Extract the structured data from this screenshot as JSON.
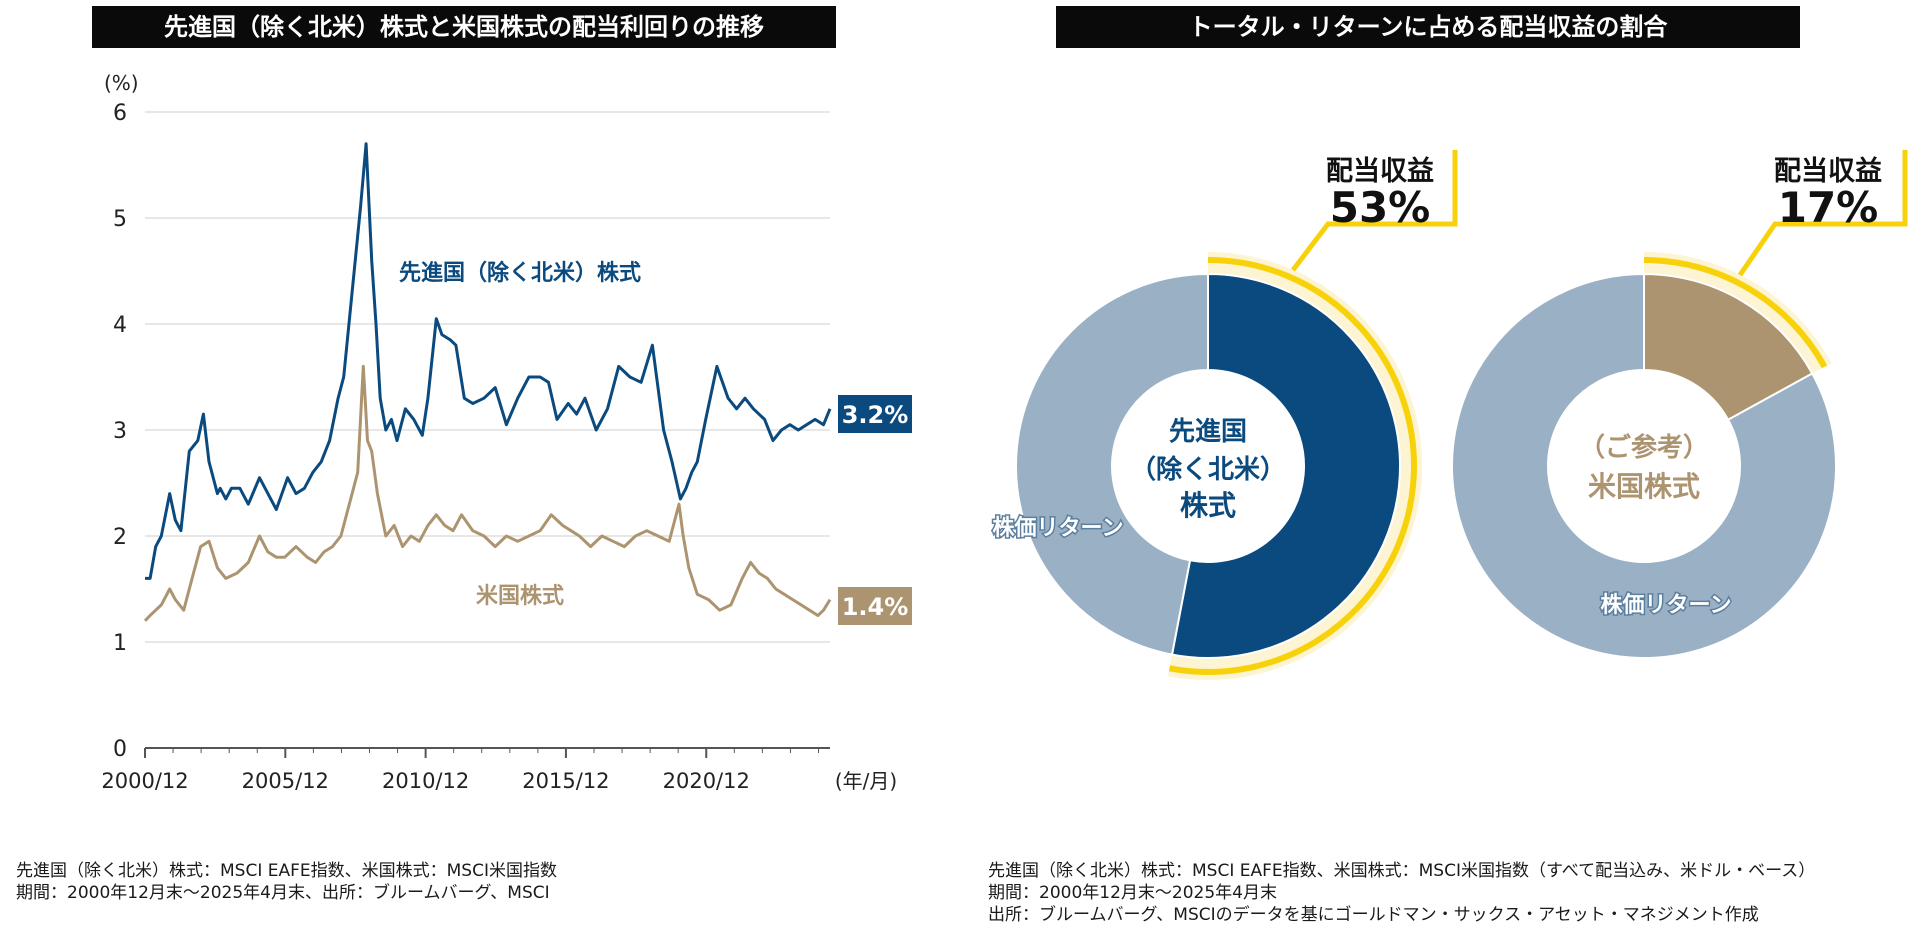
{
  "left_chart_title": "先進国（除く北米）株式と米国株式の配当利回りの推移",
  "right_chart_title": "トータル・リターンに占める配当収益の割合",
  "colors": {
    "navy": "#0b4a7e",
    "tan": "#ad9470",
    "slate": "#9ab0c4",
    "yellow": "#f7d20a",
    "grid": "#cfcfcf"
  },
  "chart_data": [
    {
      "type": "line",
      "title": "先進国（除く北米）株式と米国株式の配当利回りの推移",
      "yunit": "(%)",
      "xunit": "(年/月)",
      "ylim": [
        0,
        6
      ],
      "yticks": [
        0,
        1,
        2,
        3,
        4,
        5,
        6
      ],
      "xlim": [
        2000.92,
        2025.33
      ],
      "xticks": [
        {
          "value": 2000.92,
          "label": "2000/12"
        },
        {
          "value": 2005.92,
          "label": "2005/12"
        },
        {
          "value": 2010.92,
          "label": "2010/12"
        },
        {
          "value": 2015.92,
          "label": "2015/12"
        },
        {
          "value": 2020.92,
          "label": "2020/12"
        }
      ],
      "grid": true,
      "series": [
        {
          "name": "先進国（除く北米）株式",
          "end_label": "3.2%",
          "color": "#0b4a7e",
          "x": [
            2000.92,
            2001.1,
            2001.3,
            2001.5,
            2001.8,
            2002.0,
            2002.2,
            2002.5,
            2002.8,
            2003.0,
            2003.2,
            2003.5,
            2003.6,
            2003.8,
            2004.0,
            2004.3,
            2004.6,
            2005.0,
            2005.3,
            2005.6,
            2006.0,
            2006.3,
            2006.6,
            2006.9,
            2007.2,
            2007.5,
            2007.8,
            2008.0,
            2008.3,
            2008.6,
            2008.8,
            2009.0,
            2009.15,
            2009.3,
            2009.5,
            2009.7,
            2009.9,
            2010.2,
            2010.5,
            2010.8,
            2011.0,
            2011.3,
            2011.5,
            2011.8,
            2012.0,
            2012.3,
            2012.6,
            2013.0,
            2013.4,
            2013.8,
            2014.2,
            2014.6,
            2015.0,
            2015.3,
            2015.6,
            2016.0,
            2016.3,
            2016.6,
            2017.0,
            2017.4,
            2017.8,
            2018.2,
            2018.6,
            2019.0,
            2019.4,
            2019.7,
            2020.0,
            2020.2,
            2020.4,
            2020.6,
            2020.9,
            2021.3,
            2021.7,
            2022.0,
            2022.3,
            2022.6,
            2023.0,
            2023.3,
            2023.6,
            2023.9,
            2024.2,
            2024.5,
            2024.8,
            2025.1,
            2025.33
          ],
          "values": [
            1.6,
            1.6,
            1.9,
            2.0,
            2.4,
            2.15,
            2.05,
            2.8,
            2.9,
            3.15,
            2.7,
            2.4,
            2.45,
            2.35,
            2.45,
            2.45,
            2.3,
            2.55,
            2.4,
            2.25,
            2.55,
            2.4,
            2.45,
            2.6,
            2.7,
            2.9,
            3.3,
            3.5,
            4.3,
            5.1,
            5.7,
            4.6,
            4.0,
            3.3,
            3.0,
            3.1,
            2.9,
            3.2,
            3.1,
            2.95,
            3.3,
            4.05,
            3.9,
            3.85,
            3.8,
            3.3,
            3.25,
            3.3,
            3.4,
            3.05,
            3.3,
            3.5,
            3.5,
            3.45,
            3.1,
            3.25,
            3.15,
            3.3,
            3.0,
            3.2,
            3.6,
            3.5,
            3.45,
            3.8,
            3.0,
            2.7,
            2.35,
            2.45,
            2.6,
            2.7,
            3.1,
            3.6,
            3.3,
            3.2,
            3.3,
            3.2,
            3.1,
            2.9,
            3.0,
            3.05,
            3.0,
            3.05,
            3.1,
            3.05,
            3.2
          ]
        },
        {
          "name": "米国株式",
          "end_label": "1.4%",
          "color": "#ad9470",
          "x": [
            2000.92,
            2001.1,
            2001.3,
            2001.5,
            2001.8,
            2002.0,
            2002.3,
            2002.6,
            2002.9,
            2003.2,
            2003.5,
            2003.8,
            2004.2,
            2004.6,
            2005.0,
            2005.3,
            2005.6,
            2005.9,
            2006.3,
            2006.7,
            2007.0,
            2007.3,
            2007.6,
            2007.9,
            2008.2,
            2008.5,
            2008.7,
            2008.85,
            2009.0,
            2009.2,
            2009.5,
            2009.8,
            2010.1,
            2010.4,
            2010.7,
            2011.0,
            2011.3,
            2011.6,
            2011.9,
            2012.2,
            2012.6,
            2013.0,
            2013.4,
            2013.8,
            2014.2,
            2014.6,
            2015.0,
            2015.4,
            2015.8,
            2016.1,
            2016.4,
            2016.8,
            2017.2,
            2017.6,
            2018.0,
            2018.4,
            2018.8,
            2019.2,
            2019.6,
            2019.95,
            2020.1,
            2020.3,
            2020.6,
            2021.0,
            2021.4,
            2021.8,
            2022.2,
            2022.5,
            2022.8,
            2023.1,
            2023.4,
            2023.7,
            2024.0,
            2024.3,
            2024.6,
            2024.9,
            2025.1,
            2025.33
          ],
          "values": [
            1.2,
            1.25,
            1.3,
            1.35,
            1.5,
            1.4,
            1.3,
            1.6,
            1.9,
            1.95,
            1.7,
            1.6,
            1.65,
            1.75,
            2.0,
            1.85,
            1.8,
            1.8,
            1.9,
            1.8,
            1.75,
            1.85,
            1.9,
            2.0,
            2.3,
            2.6,
            3.6,
            2.9,
            2.8,
            2.4,
            2.0,
            2.1,
            1.9,
            2.0,
            1.95,
            2.1,
            2.2,
            2.1,
            2.05,
            2.2,
            2.05,
            2.0,
            1.9,
            2.0,
            1.95,
            2.0,
            2.05,
            2.2,
            2.1,
            2.05,
            2.0,
            1.9,
            2.0,
            1.95,
            1.9,
            2.0,
            2.05,
            2.0,
            1.95,
            2.3,
            2.0,
            1.7,
            1.45,
            1.4,
            1.3,
            1.35,
            1.6,
            1.75,
            1.65,
            1.6,
            1.5,
            1.45,
            1.4,
            1.35,
            1.3,
            1.25,
            1.3,
            1.4
          ]
        }
      ]
    },
    {
      "type": "pie",
      "style": "donut",
      "center_label": [
        "先進国",
        "（除く北米）",
        "株式"
      ],
      "slices": [
        {
          "name": "配当収益",
          "value": 53,
          "color": "#0b4a7e"
        },
        {
          "name": "株価リターン",
          "value": 47,
          "color": "#9ab0c4"
        }
      ],
      "callout": {
        "title": "配当収益",
        "value": "53%"
      }
    },
    {
      "type": "pie",
      "style": "donut",
      "center_label": [
        "（ご参考）",
        "米国株式"
      ],
      "slices": [
        {
          "name": "配当収益",
          "value": 17,
          "color": "#ad9470"
        },
        {
          "name": "株価リターン",
          "value": 83,
          "color": "#9ab0c4"
        }
      ],
      "callout": {
        "title": "配当収益",
        "value": "17%"
      }
    }
  ],
  "left_notes": [
    "先進国（除く北米）株式：MSCI EAFE指数、米国株式：MSCI米国指数",
    "期間：2000年12月末～2025年4月末、出所：ブルームバーグ、MSCI"
  ],
  "right_notes": [
    "先進国（除く北米）株式：MSCI EAFE指数、米国株式：MSCI米国指数（すべて配当込み、米ドル・ベース）",
    "期間：2000年12月末～2025年4月末",
    "出所：ブルームバーグ、MSCIのデータを基にゴールドマン・サックス・アセット・マネジメント作成"
  ]
}
